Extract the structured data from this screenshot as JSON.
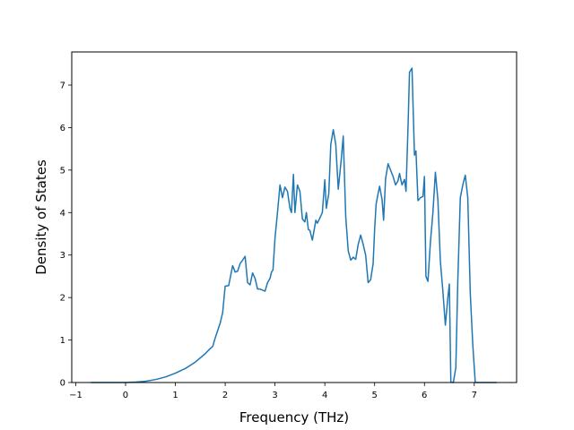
{
  "chart_data": {
    "type": "line",
    "title": "",
    "xlabel": "Frequency (THz)",
    "ylabel": "Density of States",
    "xlim": [
      -1.08,
      7.85
    ],
    "ylim": [
      0,
      7.78
    ],
    "x_ticks": [
      -1,
      0,
      1,
      2,
      3,
      4,
      5,
      6,
      7
    ],
    "y_ticks": [
      0,
      1,
      2,
      3,
      4,
      5,
      6,
      7
    ],
    "grid": false,
    "legend": "none",
    "series": [
      {
        "color": "#1f77b4",
        "points": [
          [
            -0.7,
            0
          ],
          [
            0,
            0
          ],
          [
            0.2,
            0.01
          ],
          [
            0.4,
            0.03
          ],
          [
            0.6,
            0.07
          ],
          [
            0.8,
            0.13
          ],
          [
            1.0,
            0.22
          ],
          [
            1.2,
            0.33
          ],
          [
            1.4,
            0.48
          ],
          [
            1.6,
            0.68
          ],
          [
            1.7,
            0.8
          ],
          [
            1.75,
            0.85
          ],
          [
            1.8,
            1.05
          ],
          [
            1.9,
            1.4
          ],
          [
            1.95,
            1.65
          ],
          [
            2.0,
            2.27
          ],
          [
            2.07,
            2.28
          ],
          [
            2.15,
            2.75
          ],
          [
            2.2,
            2.6
          ],
          [
            2.25,
            2.62
          ],
          [
            2.3,
            2.8
          ],
          [
            2.35,
            2.88
          ],
          [
            2.4,
            2.97
          ],
          [
            2.45,
            2.35
          ],
          [
            2.5,
            2.3
          ],
          [
            2.55,
            2.58
          ],
          [
            2.6,
            2.45
          ],
          [
            2.65,
            2.2
          ],
          [
            2.7,
            2.2
          ],
          [
            2.8,
            2.15
          ],
          [
            2.85,
            2.35
          ],
          [
            2.9,
            2.45
          ],
          [
            2.93,
            2.6
          ],
          [
            2.96,
            2.65
          ],
          [
            3.0,
            3.4
          ],
          [
            3.05,
            4.0
          ],
          [
            3.1,
            4.65
          ],
          [
            3.15,
            4.35
          ],
          [
            3.2,
            4.6
          ],
          [
            3.25,
            4.5
          ],
          [
            3.3,
            4.1
          ],
          [
            3.33,
            4.0
          ],
          [
            3.37,
            4.9
          ],
          [
            3.4,
            4.0
          ],
          [
            3.45,
            4.65
          ],
          [
            3.5,
            4.5
          ],
          [
            3.55,
            3.85
          ],
          [
            3.6,
            3.78
          ],
          [
            3.63,
            4.0
          ],
          [
            3.67,
            3.6
          ],
          [
            3.7,
            3.58
          ],
          [
            3.75,
            3.35
          ],
          [
            3.78,
            3.55
          ],
          [
            3.82,
            3.82
          ],
          [
            3.85,
            3.75
          ],
          [
            3.9,
            3.87
          ],
          [
            3.95,
            4.0
          ],
          [
            4.0,
            4.77
          ],
          [
            4.03,
            4.1
          ],
          [
            4.08,
            4.45
          ],
          [
            4.12,
            5.6
          ],
          [
            4.17,
            5.95
          ],
          [
            4.22,
            5.6
          ],
          [
            4.27,
            4.55
          ],
          [
            4.33,
            5.25
          ],
          [
            4.37,
            5.8
          ],
          [
            4.42,
            3.9
          ],
          [
            4.47,
            3.1
          ],
          [
            4.52,
            2.88
          ],
          [
            4.57,
            2.95
          ],
          [
            4.62,
            2.9
          ],
          [
            4.67,
            3.25
          ],
          [
            4.72,
            3.47
          ],
          [
            4.77,
            3.25
          ],
          [
            4.82,
            3.0
          ],
          [
            4.87,
            2.35
          ],
          [
            4.92,
            2.42
          ],
          [
            4.97,
            2.8
          ],
          [
            5.0,
            3.6
          ],
          [
            5.03,
            4.2
          ],
          [
            5.07,
            4.45
          ],
          [
            5.1,
            4.62
          ],
          [
            5.15,
            4.3
          ],
          [
            5.18,
            3.82
          ],
          [
            5.22,
            4.8
          ],
          [
            5.27,
            5.15
          ],
          [
            5.32,
            5.0
          ],
          [
            5.37,
            4.85
          ],
          [
            5.42,
            4.65
          ],
          [
            5.47,
            4.75
          ],
          [
            5.5,
            4.92
          ],
          [
            5.55,
            4.65
          ],
          [
            5.6,
            4.78
          ],
          [
            5.63,
            4.5
          ],
          [
            5.67,
            6.0
          ],
          [
            5.7,
            7.3
          ],
          [
            5.75,
            7.4
          ],
          [
            5.8,
            5.35
          ],
          [
            5.83,
            5.45
          ],
          [
            5.87,
            4.28
          ],
          [
            5.92,
            4.35
          ],
          [
            5.97,
            4.38
          ],
          [
            6.0,
            4.85
          ],
          [
            6.03,
            2.5
          ],
          [
            6.07,
            2.38
          ],
          [
            6.12,
            3.3
          ],
          [
            6.17,
            4.0
          ],
          [
            6.22,
            4.95
          ],
          [
            6.27,
            4.3
          ],
          [
            6.32,
            2.85
          ],
          [
            6.37,
            2.15
          ],
          [
            6.42,
            1.35
          ],
          [
            6.47,
            2.0
          ],
          [
            6.5,
            2.32
          ],
          [
            6.53,
            0.02
          ],
          [
            6.58,
            0
          ],
          [
            6.63,
            0.35
          ],
          [
            6.67,
            2.4
          ],
          [
            6.72,
            4.35
          ],
          [
            6.77,
            4.65
          ],
          [
            6.82,
            4.88
          ],
          [
            6.87,
            4.35
          ],
          [
            6.92,
            2.1
          ],
          [
            6.97,
            0.9
          ],
          [
            7.02,
            0
          ],
          [
            7.45,
            0
          ]
        ]
      }
    ]
  }
}
